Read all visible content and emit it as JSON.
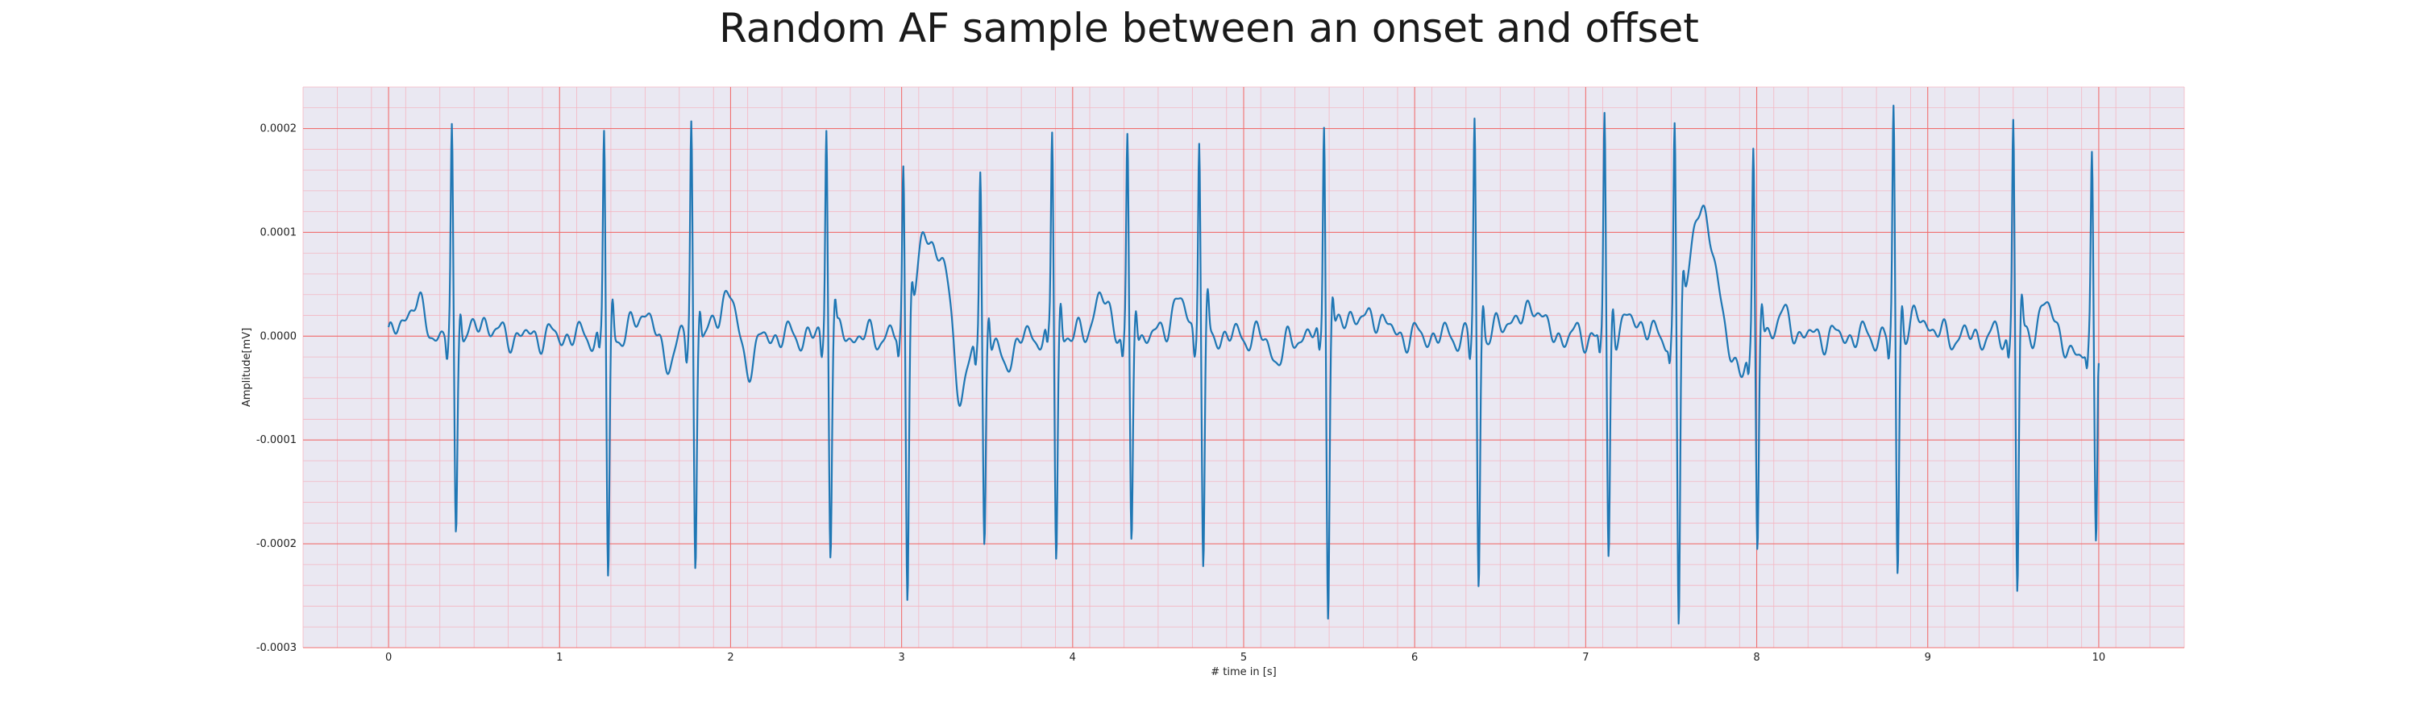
{
  "chart_data": {
    "type": "line",
    "title": "Random AF sample between an onset and offset",
    "xlabel": "# time in [s]",
    "ylabel": "Amplitude[mV]",
    "xlim": [
      -0.5,
      10.5
    ],
    "ylim": [
      -0.0003,
      0.00024
    ],
    "xticks": [
      0,
      1,
      2,
      3,
      4,
      5,
      6,
      7,
      8,
      9,
      10
    ],
    "xtick_labels": [
      "0",
      "1",
      "2",
      "3",
      "4",
      "5",
      "6",
      "7",
      "8",
      "9",
      "10"
    ],
    "yticks": [
      0.0002,
      0.0001,
      0.0,
      -0.0001,
      -0.0002,
      -0.0003
    ],
    "ytick_labels": [
      "0.0002",
      "0.0001",
      "0.0000",
      "-0.0001",
      "-0.0002",
      "-0.0003"
    ],
    "grid": true,
    "colors": {
      "line": "#1f77b4",
      "plot_background": "#eae8f2",
      "major_grid": "#f07070",
      "minor_grid": "#f4b6c2"
    },
    "beats": [
      {
        "t": 0.37,
        "r": 0.000193,
        "s": -0.000188
      },
      {
        "t": 1.26,
        "r": 0.0002,
        "s": -0.000237
      },
      {
        "t": 1.77,
        "r": 0.000205,
        "s": -0.000222
      },
      {
        "t": 2.56,
        "r": 0.000205,
        "s": -0.000203
      },
      {
        "t": 3.01,
        "r": 0.000163,
        "s": -0.000248
      },
      {
        "t": 3.46,
        "r": 0.000165,
        "s": -0.0002
      },
      {
        "t": 3.88,
        "r": 0.000197,
        "s": -0.000214
      },
      {
        "t": 4.32,
        "r": 0.000184,
        "s": -0.000206
      },
      {
        "t": 4.74,
        "r": 0.000198,
        "s": -0.000231
      },
      {
        "t": 5.47,
        "r": 0.000215,
        "s": -0.000265
      },
      {
        "t": 6.35,
        "r": 0.000207,
        "s": -0.000241
      },
      {
        "t": 7.11,
        "r": 0.000214,
        "s": -0.000218
      },
      {
        "t": 7.52,
        "r": 0.000196,
        "s": -0.000283
      },
      {
        "t": 7.98,
        "r": 0.000178,
        "s": -0.000215
      },
      {
        "t": 8.8,
        "r": 0.000215,
        "s": -0.000228
      },
      {
        "t": 9.5,
        "r": 0.000214,
        "s": -0.000251
      },
      {
        "t": 9.96,
        "r": 0.000174,
        "s": -0.000195
      }
    ],
    "waves": [
      {
        "t": 0.15,
        "a": 3.3e-05,
        "w": 0.05
      },
      {
        "t": 0.56,
        "a": 1.5e-05,
        "w": 0.04
      },
      {
        "t": 1.5,
        "a": 2.5e-05,
        "w": 0.05
      },
      {
        "t": 1.62,
        "a": -2.5e-05,
        "w": 0.04
      },
      {
        "t": 1.98,
        "a": 4.3e-05,
        "w": 0.045
      },
      {
        "t": 2.1,
        "a": -2.8e-05,
        "w": 0.04
      },
      {
        "t": 3.14,
        "a": 9.5e-05,
        "w": 0.045
      },
      {
        "t": 3.25,
        "a": 7e-05,
        "w": 0.05
      },
      {
        "t": 3.34,
        "a": -6.5e-05,
        "w": 0.045
      },
      {
        "t": 3.6,
        "a": -2.5e-05,
        "w": 0.05
      },
      {
        "t": 4.17,
        "a": 3.5e-05,
        "w": 0.05
      },
      {
        "t": 4.62,
        "a": 3.2e-05,
        "w": 0.05
      },
      {
        "t": 5.2,
        "a": -2.2e-05,
        "w": 0.04
      },
      {
        "t": 5.63,
        "a": 2.2e-05,
        "w": 0.05
      },
      {
        "t": 5.78,
        "a": 2e-05,
        "w": 0.05
      },
      {
        "t": 6.56,
        "a": 1.8e-05,
        "w": 0.05
      },
      {
        "t": 6.7,
        "a": 3.3e-05,
        "w": 0.04
      },
      {
        "t": 7.28,
        "a": 1.8e-05,
        "w": 0.05
      },
      {
        "t": 7.64,
        "a": 9e-05,
        "w": 0.04
      },
      {
        "t": 7.73,
        "a": 8.5e-05,
        "w": 0.06
      },
      {
        "t": 7.87,
        "a": -4e-05,
        "w": 0.05
      },
      {
        "t": 8.15,
        "a": 1.8e-05,
        "w": 0.05
      },
      {
        "t": 8.96,
        "a": 1.8e-05,
        "w": 0.05
      },
      {
        "t": 9.7,
        "a": 2.7e-05,
        "w": 0.05
      },
      {
        "t": 9.85,
        "a": -2.5e-05,
        "w": 0.04
      }
    ],
    "x_end": 10.0,
    "y_end": -2.6e-05
  }
}
